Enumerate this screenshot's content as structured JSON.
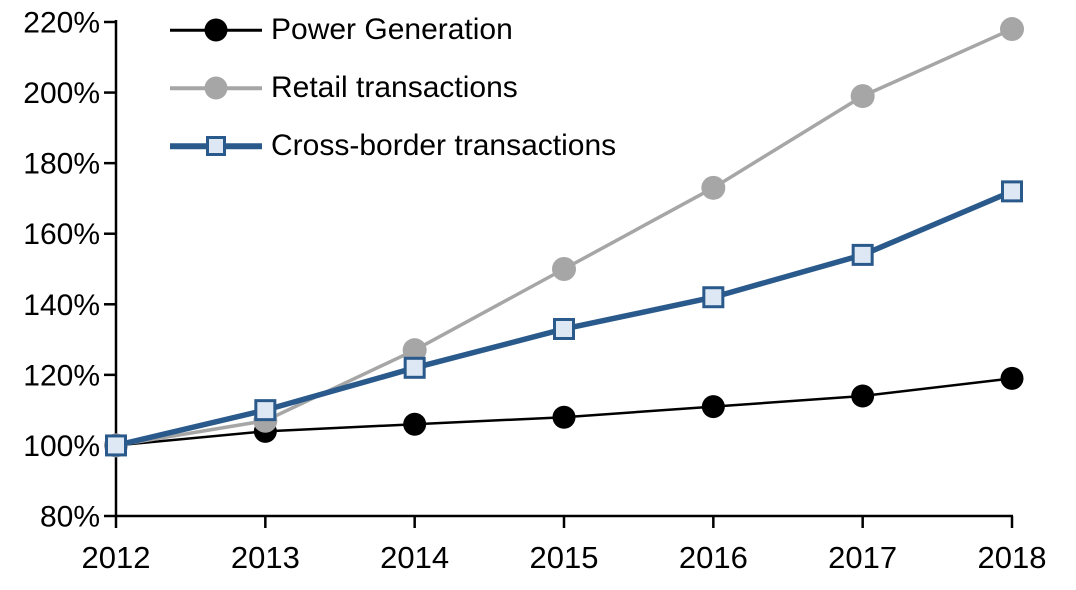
{
  "page": {
    "background": "#ffffff",
    "axis_color": "#000000",
    "text_color": "#000000"
  },
  "chart_data": {
    "type": "line",
    "title": "",
    "xlabel": "",
    "ylabel": "",
    "grid": false,
    "x": [
      "2012",
      "2013",
      "2014",
      "2015",
      "2016",
      "2017",
      "2018"
    ],
    "series": [
      {
        "name": "Power Generation",
        "values": [
          100,
          104,
          106,
          108,
          111,
          114,
          119
        ],
        "line_color": "#000000",
        "line_width": 2.5,
        "marker": "circle",
        "marker_fill": "#000000",
        "marker_stroke": "none",
        "marker_size": 23
      },
      {
        "name": "Retail transactions",
        "values": [
          100,
          107,
          127,
          150,
          173,
          199,
          218
        ],
        "line_color": "#A6A6A6",
        "line_width": 3.5,
        "marker": "circle",
        "marker_fill": "#A6A6A6",
        "marker_stroke": "none",
        "marker_size": 24
      },
      {
        "name": "Cross-border transactions",
        "values": [
          100,
          110,
          122,
          133,
          142,
          154,
          172
        ],
        "line_color": "#2A5A8C",
        "line_width": 5.5,
        "marker": "square",
        "marker_fill": "#DDE8F4",
        "marker_stroke": "#2A5A8C",
        "marker_size": 19
      }
    ],
    "y_axis": {
      "min": 80,
      "max": 220,
      "tick_step": 20,
      "format": "percent",
      "tick_labels": [
        "80%",
        "100%",
        "120%",
        "140%",
        "160%",
        "180%",
        "200%",
        "220%"
      ]
    },
    "x_axis": {
      "tick_labels": [
        "2012",
        "2013",
        "2014",
        "2015",
        "2016",
        "2017",
        "2018"
      ]
    },
    "legend_position": "top-left"
  }
}
